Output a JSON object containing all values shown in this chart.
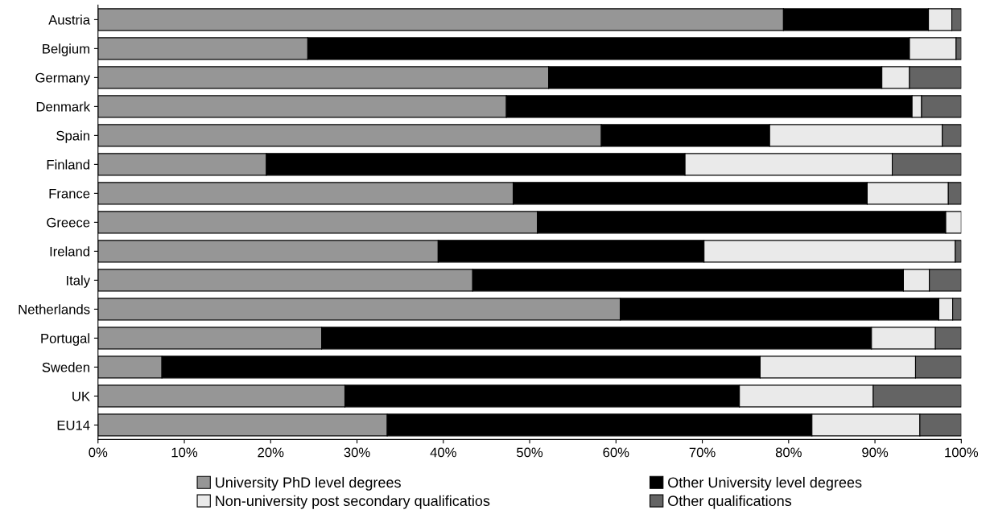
{
  "chart_data": {
    "type": "bar",
    "orientation": "horizontal",
    "stacked": true,
    "categories": [
      "Austria",
      "Belgium",
      "Germany",
      "Denmark",
      "Spain",
      "Finland",
      "France",
      "Greece",
      "Ireland",
      "Italy",
      "Netherlands",
      "Portugal",
      "Sweden",
      "UK",
      "EU14"
    ],
    "series": [
      {
        "name": "University PhD level degrees",
        "color": "#969696",
        "values": [
          79.4,
          24.3,
          52.2,
          47.3,
          58.3,
          19.5,
          48.1,
          50.9,
          39.4,
          43.4,
          60.5,
          25.9,
          7.4,
          28.6,
          33.5
        ]
      },
      {
        "name": "Other University level degrees",
        "color": "#000000",
        "values": [
          16.8,
          69.7,
          38.6,
          47.0,
          19.5,
          48.5,
          41.0,
          47.3,
          30.8,
          49.9,
          36.9,
          63.7,
          69.3,
          45.7,
          49.2
        ]
      },
      {
        "name": "Non-university post secondary qualificatios",
        "color": "#eaeaea",
        "values": [
          2.7,
          5.4,
          3.2,
          1.1,
          20.0,
          24.0,
          9.4,
          1.8,
          29.1,
          3.0,
          1.6,
          7.4,
          18.0,
          15.5,
          12.5
        ]
      },
      {
        "name": "Other qualifications",
        "color": "#646464",
        "values": [
          1.1,
          0.6,
          6.0,
          4.6,
          2.2,
          8.0,
          1.5,
          null,
          0.7,
          3.7,
          1.0,
          3.0,
          5.3,
          10.2,
          4.8
        ]
      }
    ],
    "xlim": [
      0,
      100
    ],
    "xticks": [
      {
        "value": 0,
        "label": "0%"
      },
      {
        "value": 10,
        "label": "10%"
      },
      {
        "value": 20,
        "label": "20%"
      },
      {
        "value": 30,
        "label": "30%"
      },
      {
        "value": 40,
        "label": "40%"
      },
      {
        "value": 50,
        "label": "50%"
      },
      {
        "value": 60,
        "label": "60%"
      },
      {
        "value": 70,
        "label": "70%"
      },
      {
        "value": 80,
        "label": "80%"
      },
      {
        "value": 90,
        "label": "90%"
      },
      {
        "value": 100,
        "label": "100%"
      }
    ],
    "grid": false,
    "legend": "bottom"
  }
}
